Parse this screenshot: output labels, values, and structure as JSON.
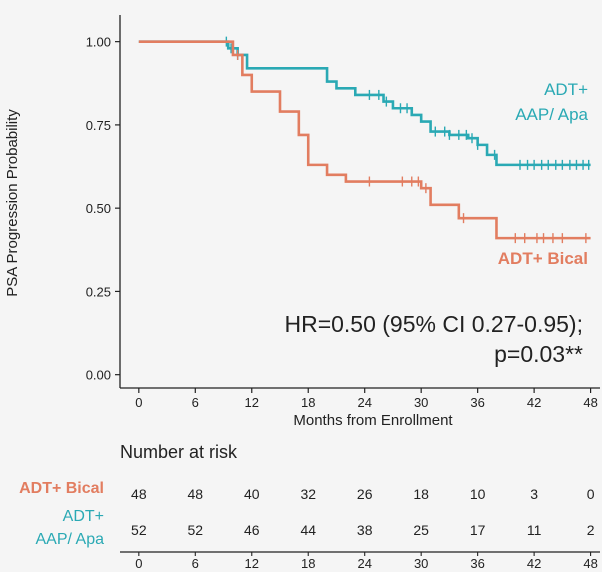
{
  "chart_data": {
    "type": "line",
    "title": "",
    "xlabel": "Months from Enrollment",
    "ylabel": "PSA Progression Probability",
    "xlim": [
      -2,
      49
    ],
    "ylim": [
      -0.04,
      1.08
    ],
    "xticks": [
      0,
      6,
      12,
      18,
      24,
      30,
      36,
      42,
      48
    ],
    "yticks": [
      0.0,
      0.25,
      0.5,
      0.75,
      1.0
    ],
    "ytick_labels": [
      "0.00",
      "0.25",
      "0.50",
      "0.75",
      "1.00"
    ],
    "grid": false,
    "legend": "inline labels at right",
    "annotation": {
      "line1": "HR=0.50 (95% CI 0.27-0.95);",
      "line2": "p=0.03**"
    },
    "series": [
      {
        "name_lines": [
          "ADT+",
          "AAP/ Apa"
        ],
        "color": "#2aa9b4",
        "steps": [
          [
            0,
            1.0
          ],
          [
            9.5,
            0.98
          ],
          [
            10.5,
            0.96
          ],
          [
            11.5,
            0.92
          ],
          [
            20,
            0.88
          ],
          [
            21,
            0.86
          ],
          [
            23,
            0.84
          ],
          [
            26,
            0.82
          ],
          [
            27,
            0.8
          ],
          [
            29,
            0.78
          ],
          [
            30,
            0.76
          ],
          [
            31,
            0.73
          ],
          [
            33,
            0.72
          ],
          [
            35,
            0.71
          ],
          [
            36,
            0.69
          ],
          [
            37,
            0.66
          ],
          [
            38,
            0.63
          ],
          [
            48,
            0.63
          ]
        ],
        "censor_times": [
          9.3,
          9.8,
          10.5,
          24.5,
          25.5,
          26.3,
          27.8,
          28.5,
          31.5,
          32.5,
          33,
          34,
          34.8,
          35.4,
          36,
          37.8,
          40.5,
          41.3,
          42,
          42.8,
          43.5,
          44.3,
          45,
          45.8,
          46.5,
          47.2,
          47.8
        ]
      },
      {
        "name_lines": [
          "ADT+ Bical"
        ],
        "color": "#e27d60",
        "steps": [
          [
            0,
            1.0
          ],
          [
            10,
            0.96
          ],
          [
            11,
            0.9
          ],
          [
            12,
            0.85
          ],
          [
            15,
            0.79
          ],
          [
            17,
            0.72
          ],
          [
            18,
            0.63
          ],
          [
            20,
            0.6
          ],
          [
            22,
            0.58
          ],
          [
            30,
            0.56
          ],
          [
            31,
            0.51
          ],
          [
            34,
            0.47
          ],
          [
            38,
            0.41
          ],
          [
            48,
            0.41
          ]
        ],
        "censor_times": [
          10.5,
          24.5,
          28,
          29,
          29.7,
          30.5,
          34.5,
          40,
          41,
          42.3,
          43,
          44,
          45,
          47.5
        ]
      }
    ],
    "risk_table": {
      "title": "Number at risk",
      "times": [
        0,
        6,
        12,
        18,
        24,
        30,
        36,
        42,
        48
      ],
      "rows": [
        {
          "label_lines": [
            "ADT+ Bical"
          ],
          "color": "#e27d60",
          "values": [
            48,
            48,
            40,
            32,
            26,
            18,
            10,
            3,
            0
          ]
        },
        {
          "label_lines": [
            "ADT+",
            "AAP/ Apa"
          ],
          "color": "#2aa9b4",
          "values": [
            52,
            52,
            46,
            44,
            38,
            25,
            17,
            11,
            2
          ]
        }
      ]
    }
  }
}
